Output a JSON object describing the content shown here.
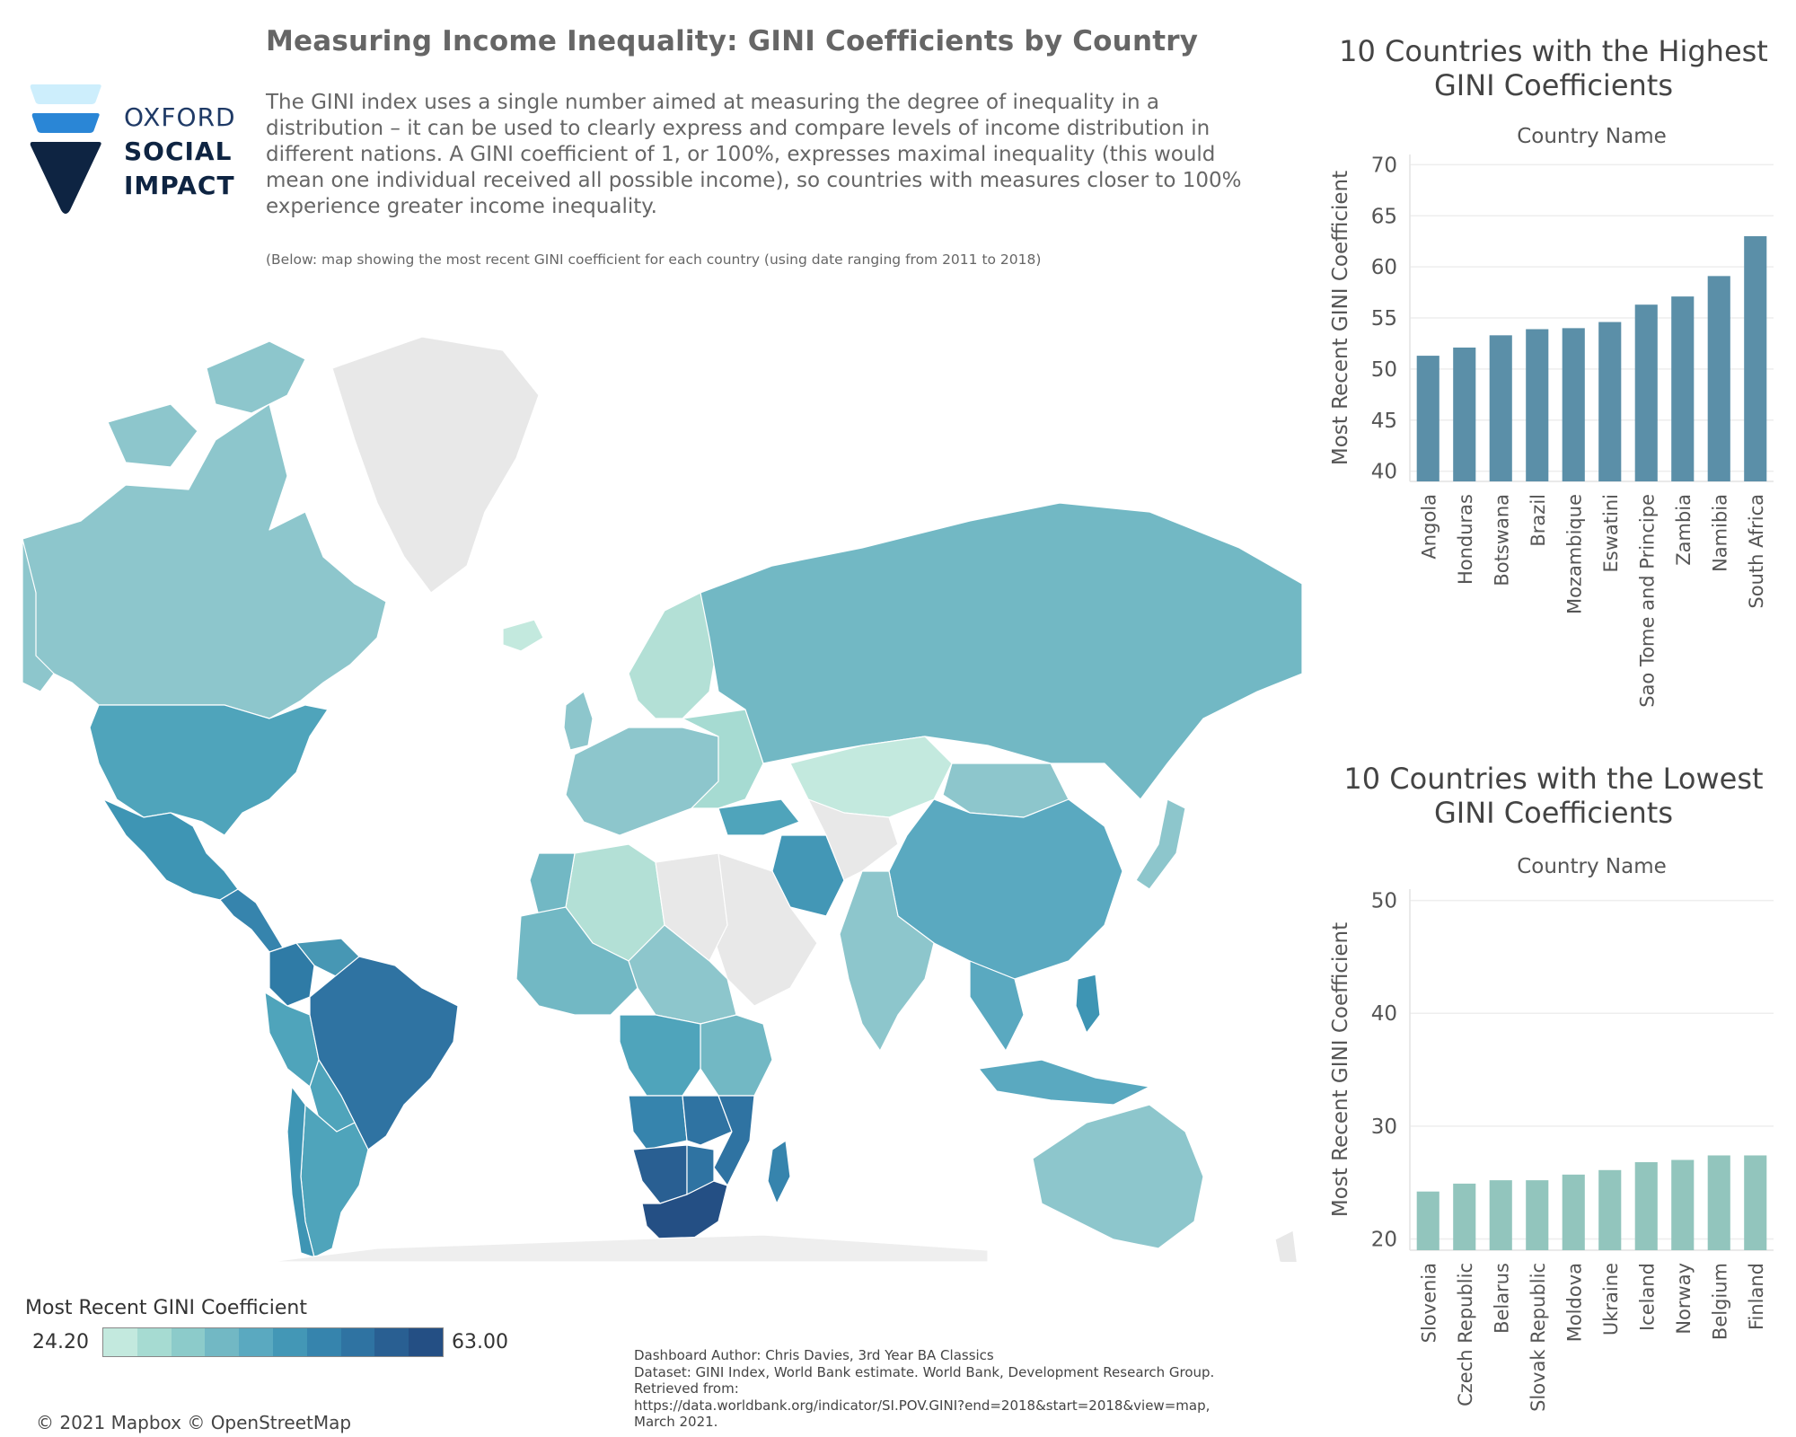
{
  "header": {
    "title": "Measuring Income Inequality: GINI Coefficients by Country",
    "description": "The GINI index uses a single number aimed at measuring the degree of inequality in a distribution –  it can be used to clearly express and compare levels of income distribution in different nations. A GINI coefficient of 1, or 100%, expresses maximal inequality (this would mean one individual received all possible income), so countries with measures closer to 100% experience greater income inequality.",
    "note": "(Below: map showing the most recent GINI coefficient for each country (using date ranging from 2011 to 2018)"
  },
  "logo": {
    "line1": "OXFORD",
    "line2": "SOCIAL",
    "line3": "IMPACT"
  },
  "legend": {
    "title": "Most Recent GINI Coefficient",
    "min": "24.20",
    "max": "63.00",
    "colors": [
      "#c3e9de",
      "#a6dbd2",
      "#8ccbca",
      "#72b8c4",
      "#5aa9c0",
      "#4397b6",
      "#3684ad",
      "#2f73a2",
      "#295f92",
      "#244f84"
    ]
  },
  "attribution": "© 2021 Mapbox © OpenStreetMap",
  "credits": [
    "Dashboard Author: Chris Davies, 3rd Year BA Classics",
    "Dataset: GINI Index, World Bank estimate. World Bank, Development Research Group.",
    "Retrieved from:",
    "https://data.worldbank.org/indicator/SI.POV.GINI?end=2018&start=2018&view=map,",
    "March 2021."
  ],
  "chart_data": [
    {
      "type": "bar",
      "title": "10 Countries with the Highest GINI Coefficients",
      "column_header": "Country Name",
      "ylabel": "Most Recent GINI Coefficient",
      "categories": [
        "Angola",
        "Honduras",
        "Botswana",
        "Brazil",
        "Mozambique",
        "Eswatini",
        "Sao Tome and Principe",
        "Zambia",
        "Namibia",
        "South Africa"
      ],
      "values": [
        51.3,
        52.1,
        53.3,
        53.9,
        54.0,
        54.6,
        56.3,
        57.1,
        59.1,
        63.0
      ],
      "ylim": [
        39,
        71
      ],
      "yticks": [
        40,
        45,
        50,
        55,
        60,
        65,
        70
      ],
      "color": "#5b8fa8",
      "grid": true
    },
    {
      "type": "bar",
      "title": "10 Countries with the Lowest GINI Coefficients",
      "column_header": "Country Name",
      "ylabel": "Most Recent GINI Coefficient",
      "categories": [
        "Slovenia",
        "Czech Republic",
        "Belarus",
        "Slovak Republic",
        "Moldova",
        "Ukraine",
        "Iceland",
        "Norway",
        "Belgium",
        "Finland"
      ],
      "values": [
        24.2,
        24.9,
        25.2,
        25.2,
        25.7,
        26.1,
        26.8,
        27.0,
        27.4,
        27.4
      ],
      "ylim": [
        19,
        51
      ],
      "yticks": [
        20,
        30,
        40,
        50
      ],
      "color": "#92c5bd",
      "grid": true
    }
  ]
}
